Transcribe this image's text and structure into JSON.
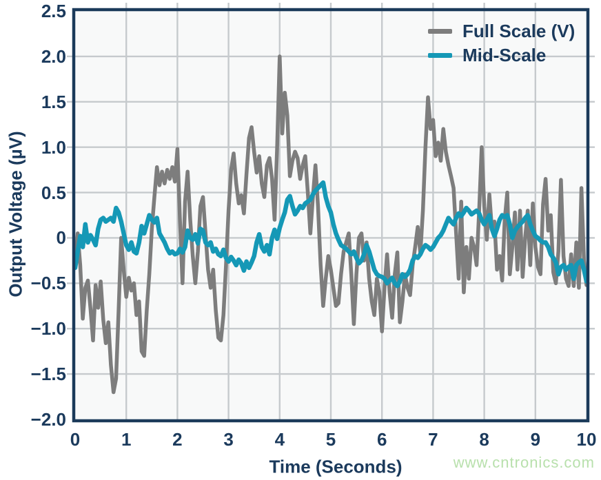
{
  "chart": {
    "watermark": "www.cntronics.com",
    "legend": {
      "items": [
        {
          "label": "Full Scale (V)",
          "color": "#7D7D7D"
        },
        {
          "label": "Mid-Scale",
          "color": "#1598B6"
        }
      ]
    },
    "x_axis": {
      "label": "Time (Seconds)",
      "ticks": [
        "0",
        "1",
        "2",
        "3",
        "4",
        "5",
        "6",
        "7",
        "8",
        "9",
        "10"
      ],
      "tick_values": [
        0,
        1,
        2,
        3,
        4,
        5,
        6,
        7,
        8,
        9,
        10
      ]
    },
    "y_axis": {
      "label": "Output Voltage (µV)",
      "ticks": [
        "2.5",
        "2.0",
        "1.5",
        "1.0",
        "0.5",
        "0",
        "−0.5",
        "−1.0",
        "−1.5",
        "−2.0"
      ],
      "tick_values": [
        2.5,
        2.0,
        1.5,
        1.0,
        0.5,
        0,
        -0.5,
        -1.0,
        -1.5,
        -2.0
      ]
    },
    "colors": {
      "axis": "#1B3A5A",
      "text": "#1B3A5C",
      "grid": "#C6CACD",
      "plot_bg": "#F8F9F9",
      "page_bg": "#FFFFFF",
      "watermark": "#B8E0AC"
    }
  },
  "chart_data": {
    "type": "line",
    "title": "",
    "xlabel": "Time (Seconds)",
    "ylabel": "Output Voltage (µV)",
    "xlim": [
      0,
      10
    ],
    "ylim": [
      -2.0,
      2.5
    ],
    "grid": true,
    "legend_position": "top-right",
    "x_start": 0,
    "x_step": 0.05,
    "series": [
      {
        "name": "Full Scale (V)",
        "color": "#7D7D7D",
        "width": 5.5,
        "values": [
          -0.28,
          0.05,
          -0.3,
          -0.89,
          -0.55,
          -0.47,
          -0.78,
          -1.13,
          -0.52,
          -0.77,
          -0.48,
          -0.9,
          -1.16,
          -0.93,
          -1.4,
          -1.7,
          -1.55,
          -0.8,
          0.0,
          -0.35,
          -0.65,
          -0.44,
          -0.58,
          -0.5,
          -0.85,
          -0.7,
          -1.25,
          -1.3,
          -0.8,
          -0.4,
          0.1,
          0.45,
          0.78,
          0.58,
          0.73,
          0.6,
          0.75,
          0.65,
          0.78,
          0.62,
          0.98,
          0.2,
          -0.5,
          0.4,
          0.73,
          0.2,
          -0.2,
          -0.5,
          -0.15,
          0.35,
          0.45,
          0.05,
          -0.35,
          -0.55,
          -0.35,
          -0.8,
          -1.1,
          -1.13,
          -0.85,
          -0.3,
          0.3,
          0.75,
          0.93,
          0.6,
          0.38,
          0.47,
          0.27,
          0.7,
          1.1,
          1.22,
          0.95,
          0.72,
          0.9,
          0.6,
          0.45,
          0.8,
          0.88,
          0.65,
          0.2,
          1.0,
          2.0,
          1.15,
          1.6,
          1.35,
          0.68,
          0.85,
          0.95,
          0.88,
          0.65,
          0.8,
          0.9,
          0.5,
          0.05,
          0.45,
          0.8,
          0.35,
          -0.3,
          -0.75,
          -0.45,
          -0.2,
          -0.35,
          -0.55,
          -0.75,
          -0.72,
          -0.4,
          -0.15,
          -0.05,
          0.05,
          -0.4,
          -0.95,
          -0.4,
          0.0,
          0.05,
          -0.25,
          -0.05,
          -0.45,
          -0.7,
          -0.85,
          -0.45,
          -0.6,
          -1.03,
          -0.55,
          -0.18,
          -0.6,
          -0.88,
          -0.4,
          -0.16,
          -0.93,
          -0.7,
          -0.4,
          -0.55,
          -0.63,
          -0.3,
          -0.1,
          0.12,
          -0.17,
          0.3,
          1.0,
          1.55,
          1.2,
          1.3,
          0.9,
          1.05,
          0.85,
          1.2,
          0.95,
          0.8,
          0.68,
          0.55,
          0.05,
          -0.45,
          0.4,
          -0.6,
          -0.1,
          -0.45,
          0.0,
          -0.1,
          -0.3,
          0.3,
          1.0,
          0.35,
          -0.02,
          0.48,
          0.1,
          0.18,
          -0.35,
          -0.2,
          -0.47,
          0.2,
          0.5,
          -0.4,
          -0.1,
          0.28,
          -0.35,
          0.3,
          -0.43,
          0.0,
          0.3,
          -0.3,
          0.38,
          -0.1,
          -0.32,
          -0.4,
          0.37,
          0.65,
          0.08,
          0.25,
          -0.38,
          -0.5,
          -0.15,
          0.64,
          -0.2,
          -0.45,
          -0.53,
          -0.18,
          -0.53,
          -0.05,
          -0.55,
          0.55,
          -0.25,
          -0.52
        ]
      },
      {
        "name": "Mid-Scale",
        "color": "#1598B6",
        "width": 6.5,
        "values": [
          -0.33,
          -0.15,
          0.02,
          -0.1,
          0.15,
          -0.05,
          0.03,
          -0.02,
          -0.08,
          0.1,
          0.2,
          0.22,
          0.18,
          0.2,
          0.22,
          0.18,
          0.33,
          0.28,
          0.18,
          0.05,
          -0.08,
          -0.13,
          -0.05,
          -0.15,
          -0.17,
          -0.05,
          0.13,
          0.05,
          0.15,
          0.25,
          0.2,
          0.17,
          0.22,
          0.05,
          0.0,
          -0.05,
          -0.12,
          -0.17,
          -0.15,
          -0.18,
          -0.17,
          -0.12,
          -0.16,
          -0.1,
          0.08,
          0.0,
          -0.02,
          0.04,
          -0.06,
          0.1,
          0.08,
          -0.05,
          -0.08,
          -0.05,
          -0.15,
          -0.12,
          -0.18,
          -0.2,
          -0.13,
          -0.22,
          -0.26,
          -0.21,
          -0.25,
          -0.3,
          -0.24,
          -0.28,
          -0.36,
          -0.26,
          -0.33,
          -0.27,
          -0.2,
          -0.05,
          0.04,
          -0.1,
          -0.15,
          -0.08,
          -0.18,
          0.0,
          0.09,
          -0.01,
          0.11,
          0.2,
          0.28,
          0.42,
          0.46,
          0.35,
          0.26,
          0.3,
          0.35,
          0.33,
          0.38,
          0.4,
          0.42,
          0.48,
          0.52,
          0.55,
          0.58,
          0.61,
          0.45,
          0.35,
          0.28,
          0.15,
          0.05,
          -0.02,
          -0.08,
          -0.1,
          -0.12,
          -0.15,
          -0.18,
          -0.15,
          -0.22,
          -0.28,
          -0.25,
          -0.18,
          -0.08,
          -0.15,
          -0.25,
          -0.35,
          -0.4,
          -0.42,
          -0.43,
          -0.45,
          -0.5,
          -0.47,
          -0.44,
          -0.5,
          -0.53,
          -0.48,
          -0.4,
          -0.43,
          -0.4,
          -0.35,
          -0.25,
          -0.2,
          -0.22,
          -0.18,
          -0.12,
          -0.08,
          -0.1,
          -0.13,
          -0.1,
          -0.05,
          0.0,
          0.03,
          0.08,
          0.15,
          0.22,
          0.18,
          0.15,
          0.22,
          0.27,
          0.24,
          0.28,
          0.33,
          0.3,
          0.26,
          0.28,
          0.3,
          0.27,
          0.2,
          0.15,
          0.2,
          0.25,
          0.1,
          0.02,
          0.1,
          0.2,
          0.25,
          0.23,
          0.25,
          0.15,
          0.0,
          0.08,
          0.12,
          0.15,
          0.18,
          0.22,
          0.25,
          0.15,
          0.08,
          0.02,
          0.0,
          -0.03,
          -0.05,
          -0.05,
          -0.1,
          -0.18,
          -0.22,
          -0.27,
          -0.4,
          -0.32,
          -0.3,
          -0.35,
          -0.32,
          -0.3,
          -0.45,
          -0.3,
          -0.27,
          -0.25,
          -0.35,
          -0.48
        ]
      }
    ]
  }
}
